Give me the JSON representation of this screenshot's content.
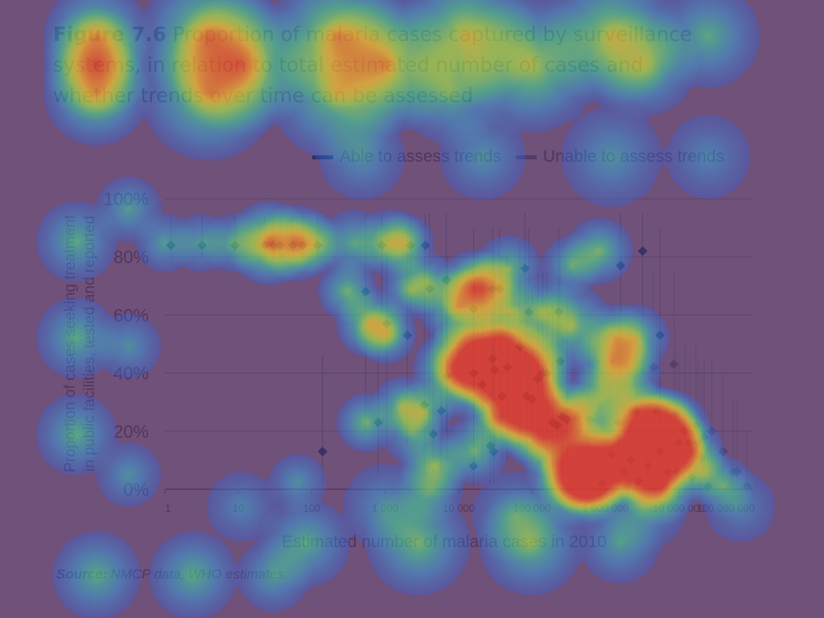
{
  "heading": {
    "figure_number": "Figure 7.6",
    "title_lines": [
      "Proportion of malaria cases captured by surveillance",
      "systems, in relation to total estimated number of cases and",
      "whether trends over time can be assessed"
    ]
  },
  "legend": [
    {
      "label": "Able to assess trends",
      "color": "#1f6f8b"
    },
    {
      "label": "Unable to assess trends",
      "color": "#8ba6b3"
    }
  ],
  "chart_data": {
    "type": "scatter",
    "xlabel": "Estimated number of malaria cases in 2010",
    "ylabel_lines": [
      "Proportion of cases seeking treatment",
      "in public facilities, tested and reported"
    ],
    "x_scale": "log",
    "xlim": [
      1,
      100000000
    ],
    "ylim": [
      0,
      100
    ],
    "x_ticks": [
      {
        "value": 1,
        "label": "1"
      },
      {
        "value": 10,
        "label": "10"
      },
      {
        "value": 100,
        "label": "100"
      },
      {
        "value": 1000,
        "label": "1 000"
      },
      {
        "value": 10000,
        "label": "10 000"
      },
      {
        "value": 100000,
        "label": "100 000"
      },
      {
        "value": 1000000,
        "label": "1 000 000"
      },
      {
        "value": 10000000,
        "label": "10 000 000"
      },
      {
        "value": 100000000,
        "label": "100 000 000"
      }
    ],
    "y_ticks": [
      {
        "value": 0,
        "label": "0%"
      },
      {
        "value": 20,
        "label": "20%"
      },
      {
        "value": 40,
        "label": "40%"
      },
      {
        "value": 60,
        "label": "60%"
      },
      {
        "value": 80,
        "label": "80%"
      },
      {
        "value": 100,
        "label": "100%"
      }
    ],
    "grid": true,
    "legend_position": "top-right",
    "series": [
      {
        "name": "Able to assess trends",
        "color": "#1f6f8b",
        "points": [
          {
            "x": 1.2,
            "y": 84,
            "lo": 79,
            "hi": 94
          },
          {
            "x": 3.2,
            "y": 84,
            "lo": 79,
            "hi": 94
          },
          {
            "x": 9,
            "y": 84,
            "lo": 79,
            "hi": 94
          },
          {
            "x": 23,
            "y": 84,
            "lo": 79,
            "hi": 94
          },
          {
            "x": 30,
            "y": 84,
            "lo": 79,
            "hi": 94
          },
          {
            "x": 37,
            "y": 84,
            "lo": 79,
            "hi": 94
          },
          {
            "x": 55,
            "y": 84,
            "lo": 79,
            "hi": 94
          },
          {
            "x": 75,
            "y": 84,
            "lo": 79,
            "hi": 94
          },
          {
            "x": 120,
            "y": 84,
            "lo": 79,
            "hi": 94
          },
          {
            "x": 900,
            "y": 84,
            "lo": 60,
            "hi": 95
          },
          {
            "x": 2200,
            "y": 84,
            "lo": 60,
            "hi": 95
          },
          {
            "x": 3500,
            "y": 84,
            "lo": 60,
            "hi": 95
          },
          {
            "x": 540,
            "y": 68,
            "lo": 20,
            "hi": 95
          },
          {
            "x": 1050,
            "y": 57,
            "lo": 15,
            "hi": 90
          },
          {
            "x": 2000,
            "y": 53,
            "lo": 15,
            "hi": 90
          },
          {
            "x": 4000,
            "y": 69,
            "lo": 20,
            "hi": 95
          },
          {
            "x": 6800,
            "y": 72,
            "lo": 20,
            "hi": 95
          },
          {
            "x": 3400,
            "y": 29,
            "lo": 5,
            "hi": 80
          },
          {
            "x": 4500,
            "y": 19,
            "lo": 5,
            "hi": 70
          },
          {
            "x": 5800,
            "y": 27,
            "lo": 5,
            "hi": 70
          },
          {
            "x": 7000,
            "y": 39,
            "lo": 10,
            "hi": 80
          },
          {
            "x": 800,
            "y": 23,
            "lo": 5,
            "hi": 60
          },
          {
            "x": 16000,
            "y": 62,
            "lo": 30,
            "hi": 90
          },
          {
            "x": 29000,
            "y": 69,
            "lo": 30,
            "hi": 90
          },
          {
            "x": 36000,
            "y": 69,
            "lo": 30,
            "hi": 90
          },
          {
            "x": 80000,
            "y": 76,
            "lo": 40,
            "hi": 95
          },
          {
            "x": 90000,
            "y": 61,
            "lo": 30,
            "hi": 90
          },
          {
            "x": 230000,
            "y": 61,
            "lo": 30,
            "hi": 90
          },
          {
            "x": 1600000,
            "y": 77,
            "lo": 40,
            "hi": 95
          },
          {
            "x": 3200000,
            "y": 82,
            "lo": 40,
            "hi": 95
          },
          {
            "x": 5500000,
            "y": 53,
            "lo": 20,
            "hi": 90
          },
          {
            "x": 16000,
            "y": 40,
            "lo": 10,
            "hi": 75
          },
          {
            "x": 21000,
            "y": 36,
            "lo": 10,
            "hi": 75
          },
          {
            "x": 29000,
            "y": 45,
            "lo": 10,
            "hi": 80
          },
          {
            "x": 31000,
            "y": 41,
            "lo": 10,
            "hi": 80
          },
          {
            "x": 39000,
            "y": 32,
            "lo": 10,
            "hi": 75
          },
          {
            "x": 46000,
            "y": 42,
            "lo": 10,
            "hi": 80
          },
          {
            "x": 68000,
            "y": 49,
            "lo": 15,
            "hi": 85
          },
          {
            "x": 85000,
            "y": 32,
            "lo": 10,
            "hi": 70
          },
          {
            "x": 100000,
            "y": 31,
            "lo": 10,
            "hi": 70
          },
          {
            "x": 120000,
            "y": 38,
            "lo": 10,
            "hi": 75
          },
          {
            "x": 140000,
            "y": 40,
            "lo": 10,
            "hi": 75
          },
          {
            "x": 160000,
            "y": 40,
            "lo": 10,
            "hi": 75
          },
          {
            "x": 190000,
            "y": 23,
            "lo": 5,
            "hi": 65
          },
          {
            "x": 220000,
            "y": 22,
            "lo": 5,
            "hi": 65
          },
          {
            "x": 260000,
            "y": 25,
            "lo": 5,
            "hi": 65
          },
          {
            "x": 300000,
            "y": 24,
            "lo": 5,
            "hi": 65
          },
          {
            "x": 240000,
            "y": 44,
            "lo": 10,
            "hi": 80
          },
          {
            "x": 27000,
            "y": 15,
            "lo": 2,
            "hi": 50
          },
          {
            "x": 30000,
            "y": 13,
            "lo": 2,
            "hi": 50
          },
          {
            "x": 16000,
            "y": 8,
            "lo": 1,
            "hi": 40
          },
          {
            "x": 140,
            "y": 13,
            "lo": 2,
            "hi": 46
          }
        ]
      },
      {
        "name": "Unable to assess trends",
        "color": "#8ba6b3",
        "points": [
          {
            "x": 900000,
            "y": 2,
            "lo": 0,
            "hi": 20
          },
          {
            "x": 1200000,
            "y": 12,
            "lo": 2,
            "hi": 40
          },
          {
            "x": 1500000,
            "y": 23,
            "lo": 5,
            "hi": 55
          },
          {
            "x": 1800000,
            "y": 6,
            "lo": 1,
            "hi": 30
          },
          {
            "x": 2000000,
            "y": 1,
            "lo": 0,
            "hi": 20
          },
          {
            "x": 2200000,
            "y": 10,
            "lo": 1,
            "hi": 35
          },
          {
            "x": 2600000,
            "y": 27,
            "lo": 5,
            "hi": 55
          },
          {
            "x": 2800000,
            "y": 3,
            "lo": 0,
            "hi": 25
          },
          {
            "x": 3800000,
            "y": 8,
            "lo": 1,
            "hi": 35
          },
          {
            "x": 4500000,
            "y": 42,
            "lo": 10,
            "hi": 75
          },
          {
            "x": 5000000,
            "y": 27,
            "lo": 5,
            "hi": 60
          },
          {
            "x": 5500000,
            "y": 13,
            "lo": 2,
            "hi": 45
          },
          {
            "x": 7000000,
            "y": 6,
            "lo": 1,
            "hi": 30
          },
          {
            "x": 8500000,
            "y": 43,
            "lo": 10,
            "hi": 75
          },
          {
            "x": 9000000,
            "y": 26,
            "lo": 5,
            "hi": 55
          },
          {
            "x": 9500000,
            "y": 6,
            "lo": 1,
            "hi": 30
          },
          {
            "x": 10000000,
            "y": 16,
            "lo": 3,
            "hi": 45
          },
          {
            "x": 12000000,
            "y": 20,
            "lo": 3,
            "hi": 50
          },
          {
            "x": 14000000,
            "y": 16,
            "lo": 3,
            "hi": 45
          },
          {
            "x": 15000000,
            "y": 4,
            "lo": 0,
            "hi": 25
          },
          {
            "x": 17000000,
            "y": 22,
            "lo": 3,
            "hi": 50
          },
          {
            "x": 18000000,
            "y": 16,
            "lo": 3,
            "hi": 45
          },
          {
            "x": 20000000,
            "y": 11,
            "lo": 1,
            "hi": 40
          },
          {
            "x": 22000000,
            "y": 18,
            "lo": 3,
            "hi": 45
          },
          {
            "x": 25000000,
            "y": 1,
            "lo": 0,
            "hi": 20
          },
          {
            "x": 28000000,
            "y": 20,
            "lo": 3,
            "hi": 45
          },
          {
            "x": 40000000,
            "y": 13,
            "lo": 2,
            "hi": 40
          },
          {
            "x": 55000000,
            "y": 6,
            "lo": 1,
            "hi": 30
          },
          {
            "x": 62000000,
            "y": 6,
            "lo": 1,
            "hi": 30
          },
          {
            "x": 85000000,
            "y": 1,
            "lo": 0,
            "hi": 20
          },
          {
            "x": 600000,
            "y": 24,
            "lo": 5,
            "hi": 55
          }
        ]
      }
    ]
  },
  "source": {
    "prefix": "Source:",
    "text": "NMCP data, WHO estimates."
  }
}
